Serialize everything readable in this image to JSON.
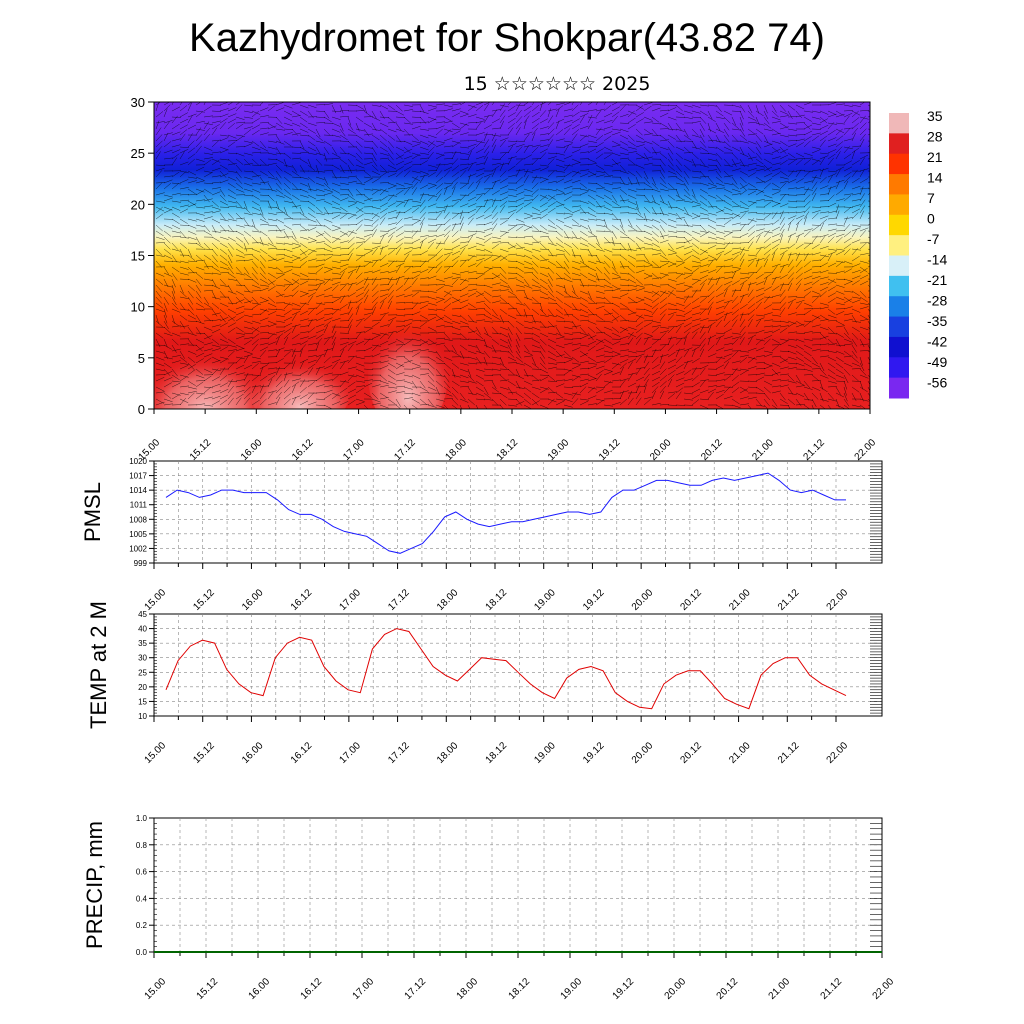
{
  "title": "Kazhydromet for Shokpar(43.82 74)",
  "subtitle": "15 ☆☆☆☆☆☆ 2025",
  "time_ticks": [
    "15.00",
    "15.12",
    "16.00",
    "16.12",
    "17.00",
    "17.12",
    "18.00",
    "18.12",
    "19.00",
    "19.12",
    "20.00",
    "20.12",
    "21.00",
    "21.12",
    "22.00"
  ],
  "colors": {
    "pmsl_line": "#1a1aff",
    "temp_line": "#e00000",
    "precip_line": "#006400"
  },
  "chart_data": [
    {
      "type": "heatmap",
      "name": "cross-section",
      "ylim": [
        0,
        30
      ],
      "yticks": [
        0,
        5,
        10,
        15,
        20,
        25,
        30
      ],
      "colorbar": {
        "labels": [
          "35",
          "28",
          "21",
          "14",
          "7",
          "0",
          "-7",
          "-14",
          "-21",
          "-28",
          "-35",
          "-42",
          "-49",
          "-56"
        ],
        "colors": [
          "#f0b8b8",
          "#e02020",
          "#ff3300",
          "#ff7a00",
          "#ffaa00",
          "#ffd800",
          "#fff080",
          "#d8f0f8",
          "#40c0f0",
          "#1a80e8",
          "#1840e0",
          "#1010d0",
          "#3018f0",
          "#7a28f0"
        ]
      }
    },
    {
      "type": "line",
      "ylabel": "PMSL",
      "ylim": [
        999,
        1020
      ],
      "yticks": [
        "999",
        "1002",
        "1005",
        "1008",
        "1011",
        "1014",
        "1017",
        "1020"
      ],
      "values": [
        1012.5,
        1014,
        1013.5,
        1012.5,
        1013,
        1014,
        1014,
        1013.5,
        1013.5,
        1013.5,
        1012,
        1010,
        1009,
        1009,
        1008,
        1006.5,
        1005.5,
        1005,
        1004.5,
        1003,
        1001.5,
        1001,
        1002,
        1003,
        1005.5,
        1008.5,
        1009.5,
        1008,
        1007,
        1006.5,
        1007,
        1007.5,
        1007.5,
        1008,
        1008.5,
        1009,
        1009.5,
        1009.5,
        1009,
        1009.5,
        1012.5,
        1014,
        1014,
        1015,
        1016,
        1016,
        1015.5,
        1015,
        1015,
        1016,
        1016.5,
        1016,
        1016.5,
        1017,
        1017.5,
        1016,
        1014,
        1013.5,
        1014,
        1013,
        1012,
        1012
      ]
    },
    {
      "type": "line",
      "ylabel": "TEMP at 2 M",
      "ylim": [
        10,
        45
      ],
      "yticks": [
        "10",
        "15",
        "20",
        "25",
        "30",
        "35",
        "40",
        "45"
      ],
      "values": [
        19,
        29,
        34,
        36,
        35,
        26,
        21,
        18,
        17,
        30,
        35,
        37,
        36,
        27,
        22,
        19,
        18,
        33,
        38,
        40,
        39,
        33,
        27,
        24,
        22,
        26,
        30,
        29.5,
        29,
        25,
        21,
        18,
        16,
        23,
        26,
        27,
        25.5,
        18,
        15,
        13,
        12.5,
        21,
        24,
        25.5,
        25.5,
        21,
        16,
        14,
        12.5,
        24,
        28,
        30,
        30,
        24,
        21,
        19,
        17
      ]
    },
    {
      "type": "line",
      "ylabel": "PRECIP, mm",
      "ylim": [
        0,
        1
      ],
      "yticks": [
        "0.0",
        "0.2",
        "0.4",
        "0.6",
        "0.8",
        "1.0"
      ],
      "values": [
        0,
        0,
        0,
        0,
        0,
        0,
        0,
        0,
        0,
        0,
        0,
        0,
        0,
        0,
        0,
        0,
        0,
        0,
        0,
        0,
        0,
        0,
        0,
        0,
        0,
        0,
        0,
        0,
        0,
        0,
        0,
        0,
        0,
        0,
        0,
        0,
        0,
        0,
        0,
        0,
        0,
        0,
        0,
        0,
        0,
        0,
        0,
        0,
        0,
        0,
        0,
        0,
        0,
        0,
        0,
        0,
        0
      ]
    }
  ]
}
